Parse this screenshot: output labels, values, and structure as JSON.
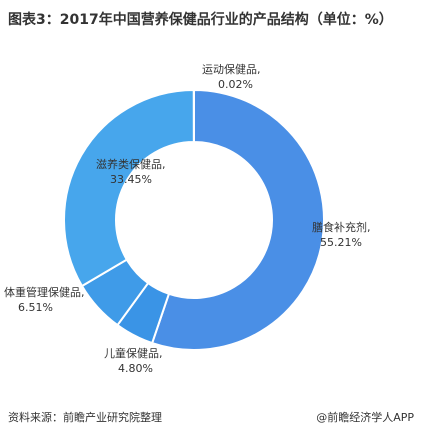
{
  "title": "图表3：2017年中国营养保健品行业的产品结构（单位：%）",
  "source": "资料来源：前瞻产业研究院整理",
  "brand": "@前瞻经济学人APP",
  "chart_data": {
    "type": "pie",
    "donut": true,
    "title": "图表3：2017年中国营养保健品行业的产品结构（单位：%）",
    "unit": "%",
    "slices": [
      {
        "label": "膳食补充剂,",
        "value": 55.21,
        "value_label": "55.21%",
        "color": "#4a8fe6"
      },
      {
        "label": "儿童保健品,",
        "value": 4.8,
        "value_label": "4.80%",
        "color": "#3a94e6"
      },
      {
        "label": "体重管理保健品,",
        "value": 6.51,
        "value_label": "6.51%",
        "color": "#3f9be8"
      },
      {
        "label": "滋养类保健品,",
        "value": 33.45,
        "value_label": "33.45%",
        "color": "#47a6ec"
      },
      {
        "label": "运动保健品,",
        "value": 0.02,
        "value_label": "0.02%",
        "color": "#47a6ec"
      }
    ]
  }
}
